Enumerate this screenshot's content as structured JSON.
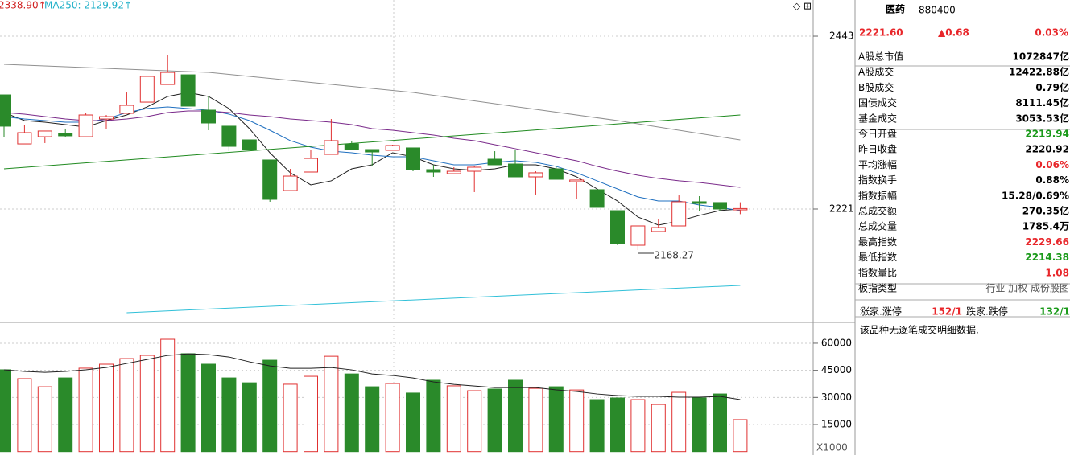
{
  "chart_data": [
    {
      "type": "candlestick",
      "legend_texts": [
        {
          "text": "2338.90↑",
          "color": "#d02020"
        },
        {
          "text": "MA250: 2129.92↑",
          "color": "#20b0c8"
        }
      ],
      "open": [
        2367.6,
        2304.6,
        2313.9,
        2318.1,
        2313.9,
        2336.6,
        2343.9,
        2358.3,
        2381.0,
        2393.4,
        2348.0,
        2327.4,
        2309.8,
        2284.0,
        2244.7,
        2268.5,
        2291.2,
        2304.6,
        2297.4,
        2296.4,
        2299.5,
        2271.6,
        2266.4,
        2269.5,
        2285.0,
        2278.8,
        2262.3,
        2272.6,
        2256.1,
        2245.8,
        2218.9,
        2174.5,
        2192.1,
        2199.3,
        2230.3,
        2229.3,
        2219.94
      ],
      "high": [
        2367.6,
        2329.4,
        2321.2,
        2324.3,
        2344.9,
        2341.8,
        2370.7,
        2391.4,
        2419.2,
        2393.4,
        2365.6,
        2327.4,
        2309.8,
        2284.0,
        2272.6,
        2297.4,
        2336.6,
        2308.8,
        2297.4,
        2303.6,
        2299.5,
        2277.8,
        2274.7,
        2276.7,
        2295.3,
        2296.4,
        2269.5,
        2275.7,
        2258.2,
        2245.8,
        2218.9,
        2199.3,
        2208.6,
        2238.5,
        2237.5,
        2229.3,
        2229.66
      ],
      "low": [
        2313.9,
        2304.6,
        2305.7,
        2313.9,
        2313.9,
        2324.3,
        2343.9,
        2358.3,
        2381.0,
        2353.2,
        2322.2,
        2295.3,
        2297.4,
        2230.3,
        2244.7,
        2268.5,
        2291.2,
        2297.4,
        2276.7,
        2296.4,
        2269.5,
        2262.3,
        2266.4,
        2242.7,
        2277.8,
        2262.3,
        2239.6,
        2259.2,
        2233.4,
        2223.1,
        2174.5,
        2168.27,
        2192.1,
        2199.3,
        2218.9,
        2218.9,
        2214.38
      ],
      "close": [
        2327.4,
        2319.1,
        2321.2,
        2315.0,
        2341.8,
        2339.7,
        2354.2,
        2391.4,
        2396.5,
        2353.2,
        2331.5,
        2301.5,
        2297.4,
        2233.4,
        2263.3,
        2286.0,
        2308.8,
        2297.4,
        2294.3,
        2302.6,
        2271.6,
        2268.5,
        2269.5,
        2274.7,
        2277.8,
        2262.3,
        2267.5,
        2259.2,
        2258.2,
        2223.1,
        2176.6,
        2199.3,
        2197.2,
        2230.3,
        2228.2,
        2221.0,
        2221.6
      ],
      "lines": [
        {
          "color": "#202020",
          "values": [
            2344.9,
            2334.6,
            2332.5,
            2329.4,
            2326.3,
            2334.6,
            2341.8,
            2352.2,
            2365.6,
            2370.7,
            2365.6,
            2350.1,
            2324.3,
            2293.3,
            2267.5,
            2252.0,
            2257.2,
            2272.6,
            2277.8,
            2293.3,
            2288.1,
            2277.8,
            2272.6,
            2270.6,
            2272.6,
            2277.8,
            2277.8,
            2272.6,
            2262.3,
            2246.8,
            2231.3,
            2210.7,
            2200.4,
            2205.5,
            2212.8,
            2219.0,
            2221.0
          ]
        },
        {
          "color": "#2070c0",
          "values": [
            2339.8,
            2336.7,
            2334.6,
            2332.5,
            2332.5,
            2336.7,
            2344.9,
            2350.1,
            2352.2,
            2350.1,
            2348.0,
            2342.9,
            2334.6,
            2322.2,
            2308.8,
            2300.5,
            2295.3,
            2293.3,
            2290.2,
            2288.1,
            2288.1,
            2283.0,
            2277.8,
            2277.8,
            2280.9,
            2283.0,
            2280.9,
            2275.8,
            2267.5,
            2257.2,
            2246.8,
            2236.5,
            2231.3,
            2231.3,
            2226.2,
            2223.1,
            2219.0
          ]
        },
        {
          "color": "#7a2a8a",
          "values": [
            2344.9,
            2342.9,
            2339.8,
            2336.7,
            2334.6,
            2334.6,
            2336.7,
            2339.8,
            2344.9,
            2347.0,
            2347.0,
            2344.9,
            2341.8,
            2339.8,
            2336.7,
            2334.6,
            2332.5,
            2329.4,
            2324.3,
            2322.2,
            2319.1,
            2316.0,
            2311.9,
            2308.8,
            2303.6,
            2298.5,
            2293.3,
            2288.1,
            2283.0,
            2275.8,
            2269.6,
            2264.4,
            2260.3,
            2257.2,
            2255.1,
            2252.0,
            2248.9
          ]
        },
        {
          "color": "#909090",
          "x": [
            0,
            10,
            20,
            30,
            36
          ],
          "values": [
            2406.9,
            2396.5,
            2370.7,
            2334.6,
            2309.8
          ]
        },
        {
          "color": "#208a20",
          "x": [
            0,
            36
          ],
          "values": [
            2272.6,
            2341.8
          ]
        },
        {
          "color": "#30c0d8",
          "x": [
            6,
            36
          ],
          "values": [
            2087.8,
            2122.9
          ]
        }
      ],
      "ylim": [
        2076.4,
        2489.5
      ],
      "yticks": [
        2221,
        2443
      ],
      "grid": true
    },
    {
      "type": "volume",
      "values": [
        45300,
        40400,
        35900,
        40800,
        46200,
        48400,
        51500,
        53300,
        62200,
        54200,
        48400,
        40800,
        38100,
        50600,
        37300,
        41700,
        52800,
        43000,
        35900,
        37700,
        32400,
        39500,
        36400,
        33700,
        34600,
        39500,
        35000,
        35900,
        34100,
        28800,
        29700,
        28800,
        26100,
        32800,
        29700,
        31900,
        17700
      ],
      "lines": [
        {
          "color": "#202020",
          "values": [
            45260,
            44370,
            43920,
            44370,
            45260,
            46590,
            48820,
            51040,
            53270,
            54160,
            53710,
            52380,
            49710,
            47480,
            46140,
            46140,
            46590,
            45260,
            43030,
            42140,
            40800,
            38580,
            37240,
            36350,
            35460,
            35460,
            35460,
            34130,
            33240,
            31900,
            31010,
            30570,
            30570,
            30120,
            30120,
            30570,
            28790
          ]
        }
      ],
      "ylim": [
        0,
        70000
      ],
      "yticks": [
        15000,
        30000,
        45000,
        60000
      ],
      "unit": "X1000"
    }
  ],
  "panel": {
    "name": "医药",
    "code": "880400",
    "price": "2221.60",
    "change": "▲0.68",
    "pct": "0.03%",
    "rows": [
      {
        "label": "A股总市值",
        "value": "1072847亿",
        "color": "#000"
      },
      {
        "label": "A股成交",
        "value": "12422.88亿",
        "color": "#000"
      },
      {
        "label": "B股成交",
        "value": "0.79亿",
        "color": "#000"
      },
      {
        "label": "国债成交",
        "value": "8111.45亿",
        "color": "#000"
      },
      {
        "label": "基金成交",
        "value": "3053.53亿",
        "color": "#000"
      },
      {
        "label": "今日开盘",
        "value": "2219.94",
        "color": "#1a9a1a"
      },
      {
        "label": "昨日收盘",
        "value": "2220.92",
        "color": "#000"
      },
      {
        "label": "平均涨幅",
        "value": "0.06%",
        "color": "#e8262a"
      },
      {
        "label": "指数换手",
        "value": "0.88%",
        "color": "#000"
      },
      {
        "label": "指数振幅",
        "value": "15.28/0.69%",
        "color": "#000"
      },
      {
        "label": "总成交额",
        "value": "270.35亿",
        "color": "#000"
      },
      {
        "label": "总成交量",
        "value": "1785.4万",
        "color": "#000"
      },
      {
        "label": "最高指数",
        "value": "2229.66",
        "color": "#e8262a"
      },
      {
        "label": "最低指数",
        "value": "2214.38",
        "color": "#1a9a1a"
      },
      {
        "label": "指数量比",
        "value": "1.08",
        "color": "#e8262a"
      },
      {
        "label": "板指类型",
        "value": "行业 加权 成份股图",
        "color": "#555"
      }
    ],
    "updown": [
      "涨家.涨停",
      "152/1",
      "跌家.跌停",
      "132/1"
    ],
    "note": "该品种无逐笔成交明细数据."
  }
}
